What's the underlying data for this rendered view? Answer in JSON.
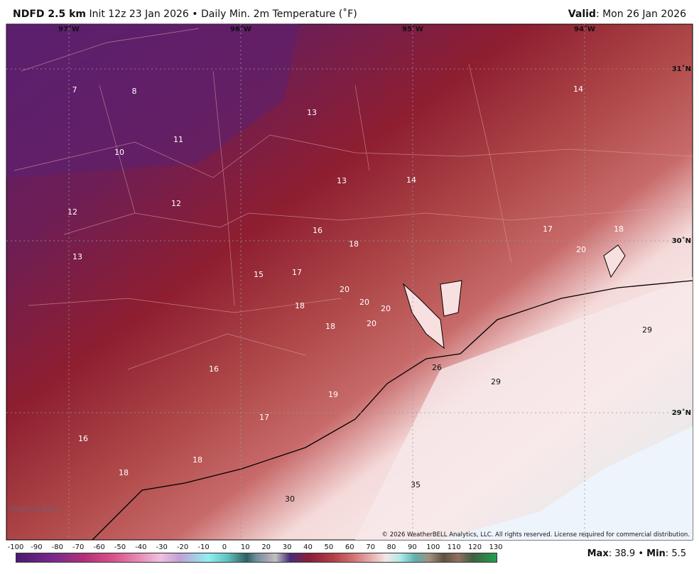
{
  "header": {
    "title": "NDFD 2.5 km",
    "subtitle": "Init 12z 23 Jan 2026 • Daily Min. 2m Temperature (˚F)",
    "valid_label": "Valid",
    "valid_date": ": Mon 26 Jan 2026"
  },
  "map": {
    "longitudes": [
      "97˚W",
      "96˚W",
      "95˚W",
      "94˚W"
    ],
    "latitudes": [
      "31˚N",
      "30˚N",
      "29˚N"
    ],
    "point_values": [
      7,
      8,
      11,
      10,
      13,
      14,
      13,
      14,
      12,
      12,
      16,
      18,
      17,
      18,
      20,
      13,
      15,
      17,
      20,
      20,
      20,
      18,
      18,
      20,
      29,
      26,
      29,
      16,
      19,
      17,
      16,
      18,
      18,
      35,
      30
    ],
    "copyright": "© 2026 WeatherBELL Analytics, LLC. All rights reserved. License required for commercial distribution."
  },
  "colorbar": {
    "ticks": [
      -100,
      -90,
      -80,
      -70,
      -60,
      -50,
      -40,
      -30,
      -20,
      -10,
      0,
      10,
      20,
      30,
      40,
      50,
      60,
      70,
      80,
      90,
      100,
      110,
      120,
      130
    ]
  },
  "stats": {
    "max_label": "Max",
    "max": 38.9,
    "separator": "•",
    "min_label": "Min",
    "min": 5.5
  }
}
